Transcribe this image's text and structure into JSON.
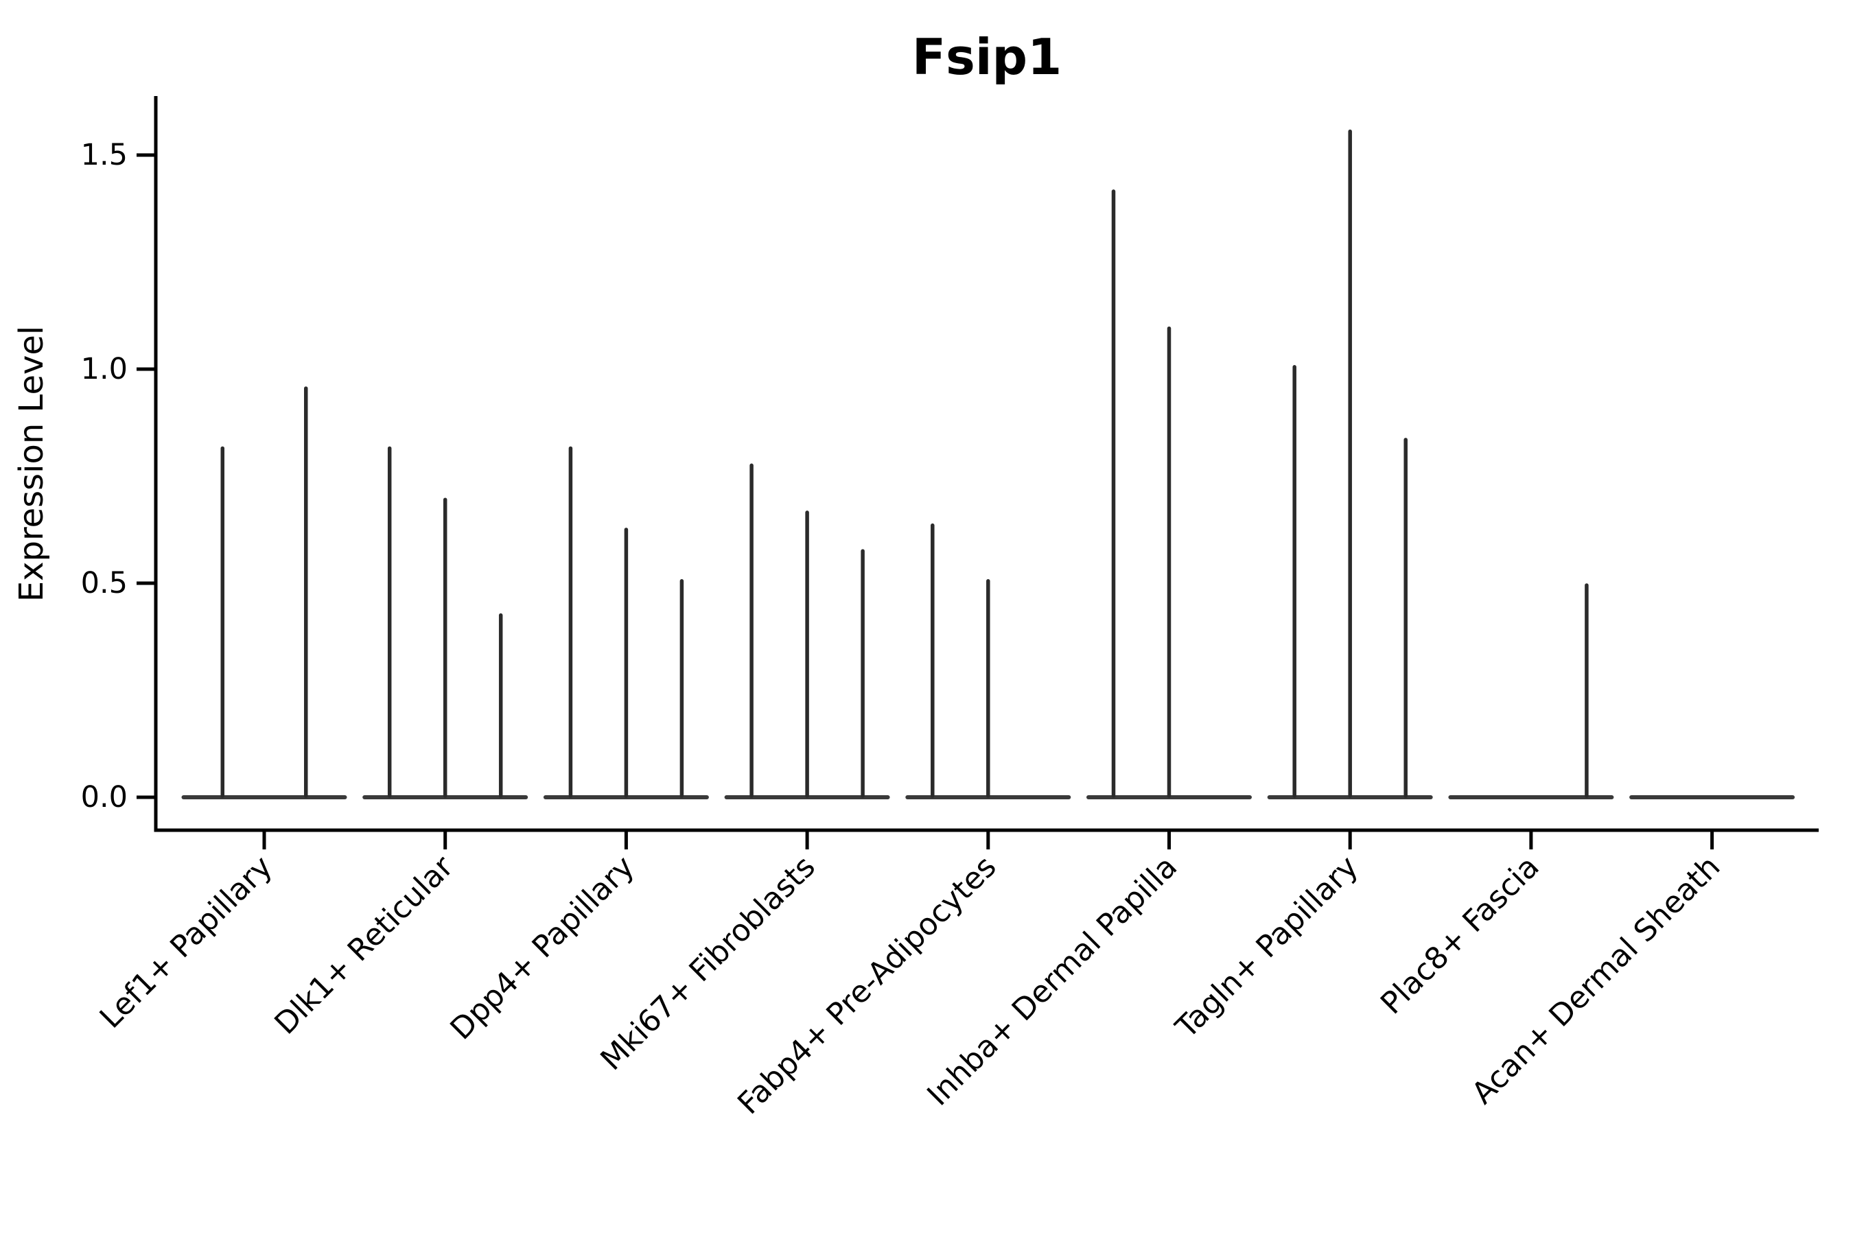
{
  "figure": {
    "title": "Fsip1",
    "ylabel": "Expression Level"
  },
  "chart_data": {
    "type": "violin",
    "title": "Fsip1",
    "xlabel": "",
    "ylabel": "Expression Level",
    "ylim": [
      0,
      1.64
    ],
    "yticks": [
      "0.0",
      "0.5",
      "1.0",
      "1.5"
    ],
    "grid": false,
    "legend": false,
    "categories": [
      "Lef1+ Papillary",
      "Dlk1+ Reticular",
      "Dpp4+ Papillary",
      "Mki67+ Fibroblasts",
      "Fabp4+ Pre-Adipocytes",
      "Inhba+ Dermal Papilla",
      "Tagln+ Papillary",
      "Plac8+ Fascia",
      "Acan+ Dermal Sheath"
    ],
    "groups": [
      {
        "category": "Lef1+ Papillary",
        "violin_maxima": [
          0.82,
          0.96
        ]
      },
      {
        "category": "Dlk1+ Reticular",
        "violin_maxima": [
          0.82,
          0.7,
          0.43
        ]
      },
      {
        "category": "Dpp4+ Papillary",
        "violin_maxima": [
          0.82,
          0.63,
          0.51
        ]
      },
      {
        "category": "Mki67+ Fibroblasts",
        "violin_maxima": [
          0.78,
          0.67,
          0.58
        ]
      },
      {
        "category": "Fabp4+ Pre-Adipocytes",
        "violin_maxima": [
          0.64,
          0.51,
          0
        ]
      },
      {
        "category": "Inhba+ Dermal Papilla",
        "violin_maxima": [
          1.42,
          1.1,
          0
        ]
      },
      {
        "category": "Tagln+ Papillary",
        "violin_maxima": [
          1.01,
          1.56,
          0.84
        ]
      },
      {
        "category": "Plac8+ Fascia",
        "violin_maxima": [
          0,
          0,
          0.5
        ]
      },
      {
        "category": "Acan+ Dermal Sheath",
        "violin_maxima": [
          0,
          0,
          0
        ]
      }
    ],
    "colors": {
      "violin_stroke": "#2b2b2b",
      "baseline_stroke": "#3a3a3a",
      "axis": "#000000",
      "text": "#000000",
      "background": "#ffffff"
    }
  }
}
